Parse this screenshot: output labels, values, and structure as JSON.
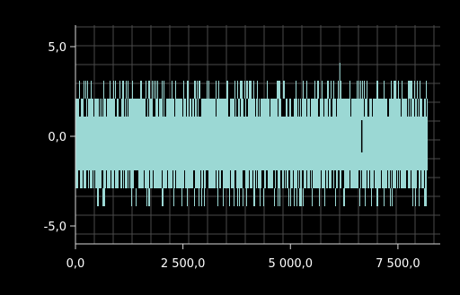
{
  "colors": {
    "background": "#000000",
    "grid": "#4a4a4a",
    "axis": "#d8d8d8",
    "text": "#ffffff",
    "signal": "#9bd8d4"
  },
  "chart_data": {
    "type": "line",
    "title": "",
    "xlabel": "",
    "ylabel": "",
    "xlim": [
      0,
      8192
    ],
    "ylim": [
      -6,
      6
    ],
    "grid": true,
    "x_ticks": [
      0,
      2500,
      5000,
      7500
    ],
    "x_tick_labels": [
      "0,0",
      "2 500,0",
      "5 000,0",
      "7 500,0"
    ],
    "y_ticks": [
      5,
      0,
      -5
    ],
    "y_tick_labels": [
      "5,0",
      "0,0",
      "-5,0"
    ],
    "series": [
      {
        "color": "#9bd8d4",
        "sample_count": 8192,
        "band": {
          "min": -3,
          "max": 2
        },
        "values_outside_band": [
          3,
          -4,
          4,
          -1
        ],
        "x_of_max": 6150,
        "x_of_min": 6660,
        "x_range": [
          0,
          8192
        ]
      }
    ]
  }
}
